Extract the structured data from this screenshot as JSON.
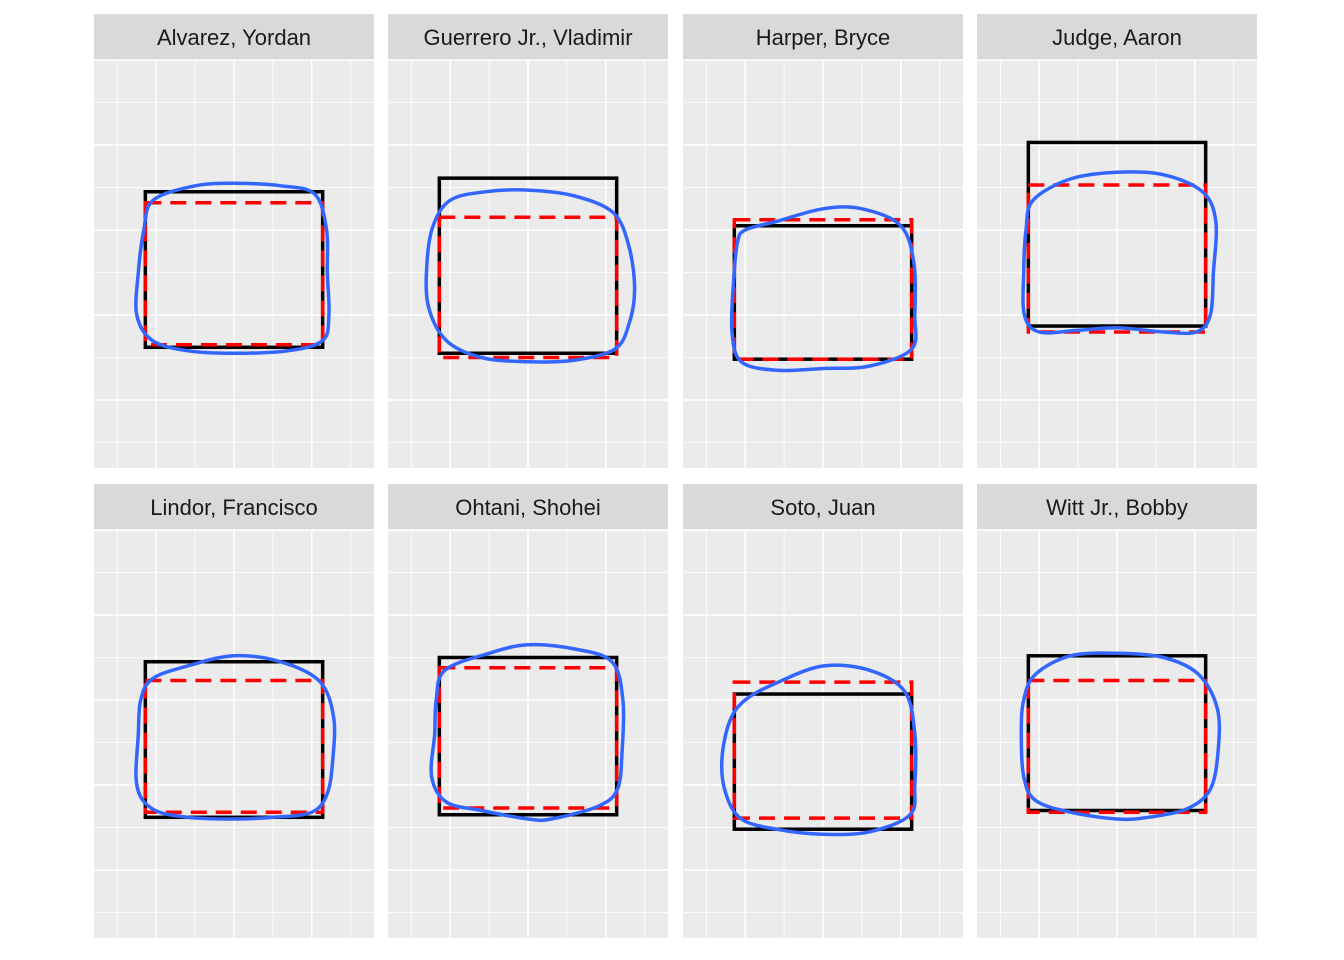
{
  "chart_data": {
    "type": "faceted-zone-plot",
    "title": "",
    "xlabel": "",
    "ylabel": "",
    "grid": true,
    "legend": "none",
    "axis_text": "none",
    "xlim": [
      -1.8,
      1.8
    ],
    "ylim": [
      0.2,
      5.0
    ],
    "colors": {
      "panel_background": "#ebebeb",
      "strip_background": "#d9d9d9",
      "grid": "#ffffff",
      "rule_zone": "#000000",
      "player_zone": "#ff0000",
      "called_zone": "#3366ff"
    },
    "facets": [
      {
        "player": "Alvarez, Yordan",
        "rule_zone": {
          "x": [
            -1.14,
            1.14
          ],
          "y": [
            1.62,
            3.45
          ]
        },
        "player_zone": {
          "x": [
            -1.14,
            1.14
          ],
          "y": [
            1.65,
            3.32
          ]
        },
        "called_zone": [
          [
            -0.5,
            3.52
          ],
          [
            0.0,
            3.55
          ],
          [
            0.6,
            3.52
          ],
          [
            1.04,
            3.42
          ],
          [
            1.19,
            3.0
          ],
          [
            1.2,
            2.5
          ],
          [
            1.22,
            2.0
          ],
          [
            1.14,
            1.7
          ],
          [
            0.7,
            1.58
          ],
          [
            0.0,
            1.55
          ],
          [
            -0.6,
            1.58
          ],
          [
            -1.05,
            1.7
          ],
          [
            -1.25,
            2.0
          ],
          [
            -1.23,
            2.5
          ],
          [
            -1.16,
            3.0
          ],
          [
            -1.04,
            3.35
          ]
        ]
      },
      {
        "player": "Guerrero Jr., Vladimir",
        "rule_zone": {
          "x": [
            -1.14,
            1.14
          ],
          "y": [
            1.55,
            3.61
          ]
        },
        "player_zone": {
          "x": [
            -1.14,
            1.14
          ],
          "y": [
            1.5,
            3.15
          ]
        },
        "called_zone": [
          [
            -0.55,
            3.45
          ],
          [
            0.0,
            3.47
          ],
          [
            0.6,
            3.4
          ],
          [
            1.1,
            3.2
          ],
          [
            1.3,
            2.8
          ],
          [
            1.37,
            2.3
          ],
          [
            1.3,
            1.9
          ],
          [
            1.12,
            1.6
          ],
          [
            0.6,
            1.47
          ],
          [
            0.0,
            1.45
          ],
          [
            -0.6,
            1.5
          ],
          [
            -1.05,
            1.7
          ],
          [
            -1.28,
            2.1
          ],
          [
            -1.3,
            2.6
          ],
          [
            -1.22,
            3.05
          ],
          [
            -1.0,
            3.35
          ]
        ]
      },
      {
        "player": "Harper, Bryce",
        "rule_zone": {
          "x": [
            -1.14,
            1.14
          ],
          "y": [
            1.48,
            3.05
          ]
        },
        "player_zone": {
          "x": [
            -1.14,
            1.14
          ],
          "y": [
            1.48,
            3.12
          ]
        },
        "called_zone": [
          [
            -0.6,
            3.1
          ],
          [
            0.0,
            3.25
          ],
          [
            0.5,
            3.25
          ],
          [
            1.0,
            3.05
          ],
          [
            1.17,
            2.6
          ],
          [
            1.18,
            2.0
          ],
          [
            1.14,
            1.6
          ],
          [
            0.6,
            1.4
          ],
          [
            0.0,
            1.37
          ],
          [
            -0.6,
            1.35
          ],
          [
            -1.05,
            1.45
          ],
          [
            -1.17,
            1.8
          ],
          [
            -1.15,
            2.4
          ],
          [
            -1.1,
            2.85
          ],
          [
            -1.0,
            3.0
          ]
        ]
      },
      {
        "player": "Judge, Aaron",
        "rule_zone": {
          "x": [
            -1.14,
            1.14
          ],
          "y": [
            1.87,
            4.03
          ]
        },
        "player_zone": {
          "x": [
            -1.14,
            1.14
          ],
          "y": [
            1.8,
            3.53
          ]
        },
        "called_zone": [
          [
            -0.6,
            3.6
          ],
          [
            0.0,
            3.68
          ],
          [
            0.6,
            3.65
          ],
          [
            1.1,
            3.45
          ],
          [
            1.27,
            3.1
          ],
          [
            1.24,
            2.5
          ],
          [
            1.2,
            2.0
          ],
          [
            1.02,
            1.8
          ],
          [
            0.6,
            1.8
          ],
          [
            0.0,
            1.85
          ],
          [
            -0.5,
            1.82
          ],
          [
            -1.0,
            1.8
          ],
          [
            -1.19,
            2.0
          ],
          [
            -1.2,
            2.5
          ],
          [
            -1.17,
            3.0
          ],
          [
            -1.08,
            3.35
          ]
        ]
      },
      {
        "player": "Lindor, Francisco",
        "rule_zone": {
          "x": [
            -1.14,
            1.14
          ],
          "y": [
            1.62,
            3.45
          ]
        },
        "player_zone": {
          "x": [
            -1.14,
            1.14
          ],
          "y": [
            1.68,
            3.23
          ]
        },
        "called_zone": [
          [
            -0.6,
            3.4
          ],
          [
            0.0,
            3.52
          ],
          [
            0.6,
            3.45
          ],
          [
            1.1,
            3.22
          ],
          [
            1.28,
            2.8
          ],
          [
            1.27,
            2.3
          ],
          [
            1.2,
            1.9
          ],
          [
            1.0,
            1.68
          ],
          [
            0.5,
            1.62
          ],
          [
            0.0,
            1.6
          ],
          [
            -0.6,
            1.62
          ],
          [
            -1.05,
            1.72
          ],
          [
            -1.25,
            2.0
          ],
          [
            -1.23,
            2.6
          ],
          [
            -1.2,
            3.0
          ],
          [
            -1.05,
            3.25
          ]
        ]
      },
      {
        "player": "Ohtani, Shohei",
        "rule_zone": {
          "x": [
            -1.14,
            1.14
          ],
          "y": [
            1.65,
            3.5
          ]
        },
        "player_zone": {
          "x": [
            -1.14,
            1.14
          ],
          "y": [
            1.73,
            3.38
          ]
        },
        "called_zone": [
          [
            -0.5,
            3.55
          ],
          [
            0.0,
            3.65
          ],
          [
            0.6,
            3.6
          ],
          [
            1.08,
            3.45
          ],
          [
            1.22,
            3.0
          ],
          [
            1.21,
            2.4
          ],
          [
            1.15,
            1.95
          ],
          [
            0.9,
            1.75
          ],
          [
            0.3,
            1.6
          ],
          [
            0.0,
            1.6
          ],
          [
            -0.6,
            1.7
          ],
          [
            -1.05,
            1.8
          ],
          [
            -1.24,
            2.1
          ],
          [
            -1.2,
            2.6
          ],
          [
            -1.18,
            3.0
          ],
          [
            -1.07,
            3.35
          ]
        ]
      },
      {
        "player": "Soto, Juan",
        "rule_zone": {
          "x": [
            -1.14,
            1.14
          ],
          "y": [
            1.48,
            3.07
          ]
        },
        "player_zone": {
          "x": [
            -1.14,
            1.14
          ],
          "y": [
            1.61,
            3.21
          ]
        },
        "called_zone": [
          [
            -0.6,
            3.2
          ],
          [
            0.0,
            3.4
          ],
          [
            0.6,
            3.35
          ],
          [
            1.05,
            3.1
          ],
          [
            1.18,
            2.6
          ],
          [
            1.18,
            2.0
          ],
          [
            1.12,
            1.65
          ],
          [
            0.6,
            1.45
          ],
          [
            0.0,
            1.42
          ],
          [
            -0.6,
            1.48
          ],
          [
            -1.05,
            1.6
          ],
          [
            -1.25,
            1.9
          ],
          [
            -1.3,
            2.3
          ],
          [
            -1.2,
            2.75
          ],
          [
            -1.0,
            3.0
          ]
        ]
      },
      {
        "player": "Witt Jr., Bobby",
        "rule_zone": {
          "x": [
            -1.14,
            1.14
          ],
          "y": [
            1.7,
            3.52
          ]
        },
        "player_zone": {
          "x": [
            -1.14,
            1.14
          ],
          "y": [
            1.68,
            3.23
          ]
        },
        "called_zone": [
          [
            -0.6,
            3.52
          ],
          [
            0.0,
            3.55
          ],
          [
            0.6,
            3.5
          ],
          [
            1.05,
            3.3
          ],
          [
            1.29,
            2.9
          ],
          [
            1.3,
            2.4
          ],
          [
            1.2,
            1.95
          ],
          [
            0.9,
            1.72
          ],
          [
            0.4,
            1.62
          ],
          [
            0.0,
            1.6
          ],
          [
            -0.6,
            1.68
          ],
          [
            -1.05,
            1.82
          ],
          [
            -1.2,
            2.1
          ],
          [
            -1.23,
            2.6
          ],
          [
            -1.2,
            3.0
          ],
          [
            -1.05,
            3.3
          ]
        ]
      }
    ]
  }
}
